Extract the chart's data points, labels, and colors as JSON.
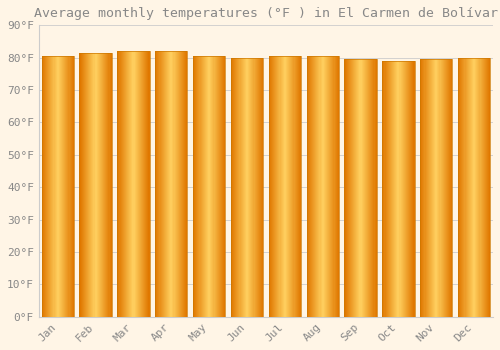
{
  "title": "Average monthly temperatures (°F ) in El Carmen de Bolívar",
  "months": [
    "Jan",
    "Feb",
    "Mar",
    "Apr",
    "May",
    "Jun",
    "Jul",
    "Aug",
    "Sep",
    "Oct",
    "Nov",
    "Dec"
  ],
  "values": [
    80.5,
    81.5,
    82.0,
    82.0,
    80.5,
    80.0,
    80.5,
    80.5,
    79.5,
    79.0,
    79.5,
    80.0
  ],
  "bar_color": "#FFA500",
  "bar_edge_color": "#CC7700",
  "background_color": "#FFF5E6",
  "grid_color": "#CCCCCC",
  "text_color": "#888888",
  "ylim": [
    0,
    90
  ],
  "ytick_step": 10,
  "title_fontsize": 9.5,
  "tick_fontsize": 8,
  "font_family": "monospace",
  "bar_width": 0.85
}
